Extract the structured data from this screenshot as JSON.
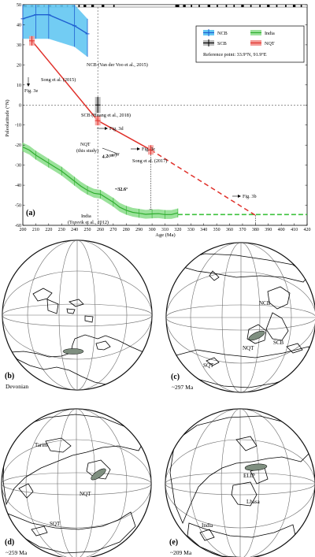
{
  "chart_data": {
    "type": "line",
    "panel_label": "(a)",
    "xlabel": "Age (Ma)",
    "ylabel": "Paleolatitude (°N)",
    "xlim": [
      200,
      420
    ],
    "ylim": [
      -60,
      50
    ],
    "xticks": [
      "200",
      "210",
      "220",
      "230",
      "240",
      "250",
      "260",
      "270",
      "280",
      "290",
      "300",
      "310",
      "320",
      "330",
      "340",
      "350",
      "360",
      "370",
      "380",
      "390",
      "400",
      "410",
      "420"
    ],
    "yticks": [
      "50",
      "40",
      "30",
      "20",
      "10",
      "0",
      "-10",
      "-20",
      "-30",
      "-40",
      "-50",
      "-60"
    ],
    "legend": {
      "position": "top-right",
      "entries": [
        {
          "label": "NCB",
          "color": "#1f5fd1"
        },
        {
          "label": "India",
          "color": "#4fca4f"
        },
        {
          "label": "SCB",
          "color": "#000000"
        },
        {
          "label": "NQT",
          "color": "#e0312b"
        }
      ],
      "reference": "Reference point: 33.9°N, 91.9°E"
    },
    "series": [
      {
        "name": "NCB",
        "color": "#1f5fd1",
        "band_color": "#63c6f2",
        "x": [
          200,
          210,
          220,
          240,
          250
        ],
        "y": [
          43,
          45,
          45,
          39.5,
          35.5
        ],
        "y_low": [
          33,
          33,
          33,
          29,
          24
        ],
        "y_high": [
          50,
          50,
          50,
          50,
          43
        ]
      },
      {
        "name": "India",
        "color": "#2fae2f",
        "band_color": "#9be29b",
        "x": [
          200,
          205,
          210,
          215,
          220,
          225,
          230,
          235,
          240,
          245,
          250,
          255,
          260,
          265,
          270,
          275,
          280,
          285,
          290,
          295,
          300,
          305,
          310,
          315,
          320
        ],
        "y": [
          -21,
          -22.5,
          -25,
          -27,
          -29,
          -31,
          -33,
          -35.5,
          -38,
          -40.5,
          -42.5,
          -44,
          -44.5,
          -46.5,
          -48.5,
          -51,
          -52.5,
          -53.5,
          -54,
          -54.5,
          -54.3,
          -54.2,
          -54.6,
          -54.6,
          -53.8
        ]
      },
      {
        "name": "NQT",
        "color": "#e0312b",
        "solid_x": [
          207,
          258,
          299
        ],
        "solid_y": [
          32,
          -7.8,
          -22.4
        ],
        "dashed_x": [
          299,
          380
        ],
        "dashed_y": [
          -22.4,
          -55
        ],
        "boxes": [
          {
            "x": 207,
            "y": 32
          },
          {
            "x": 258,
            "y": -7.8
          },
          {
            "x": 299,
            "y": -22.4
          }
        ]
      },
      {
        "name": "SCB",
        "color": "#000000",
        "x": [
          258
        ],
        "y": [
          0
        ],
        "err": 4
      }
    ],
    "india_extension_dashed": {
      "x": [
        320,
        420
      ],
      "y": [
        -54.6,
        -54.6
      ]
    },
    "annotations": {
      "ncb": "NCB (Van der Voo et al., 2015)",
      "song2015": "Song et al. (2015)",
      "fig3e": "Fig. 3e",
      "scb": "SCB (Huang et al., 2018)",
      "fig3d": "Fig. 3d",
      "nqt1": "NQT",
      "nqt2": "(this study)",
      "rate": "4.2cm/yr",
      "fig3c": "Fig. 3c",
      "song2017": "Song et al. (2017)",
      "angle": "~32.6°",
      "fig3b": "Fig. 3b",
      "india1": "India",
      "india2": "(Torsvik et al., 2012)"
    }
  },
  "maps": {
    "b": {
      "label": "(b)",
      "subtitle": "Devonian",
      "texts": []
    },
    "c": {
      "label": "(c)",
      "subtitle": "~297 Ma",
      "texts": [
        "NCB",
        "NQT",
        "SCB",
        "SQT"
      ]
    },
    "d": {
      "label": "(d)",
      "subtitle": "~259 Ma",
      "texts": [
        "Tarim",
        "NQT",
        "SQT"
      ]
    },
    "e": {
      "label": "(e)",
      "subtitle": "~209 Ma",
      "texts": [
        "ELIP",
        "Lhasa",
        "India"
      ]
    }
  }
}
